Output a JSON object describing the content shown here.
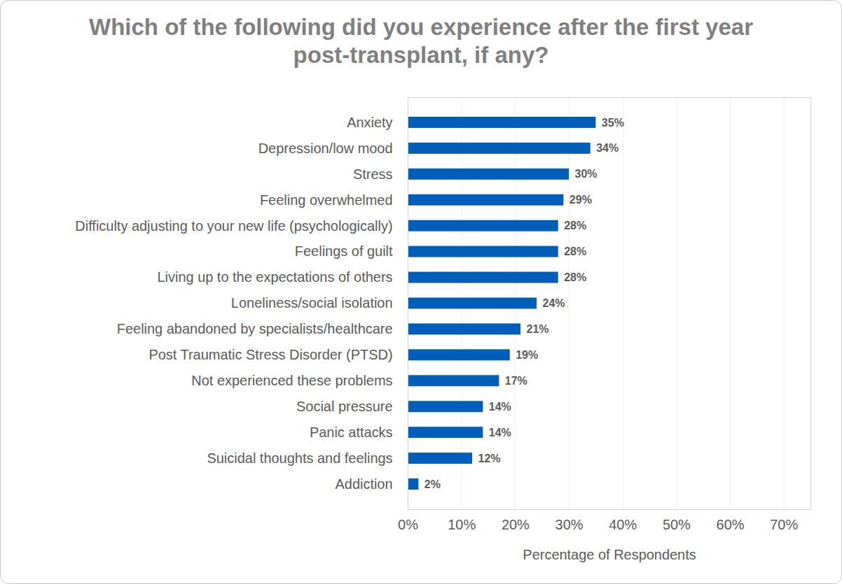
{
  "chart_data": {
    "type": "bar",
    "orientation": "horizontal",
    "title": "Which of the following did you experience after the first year post-transplant, if any?",
    "x_label": "Percentage of Respondents",
    "categories": [
      "Anxiety",
      "Depression/low mood",
      "Stress",
      "Feeling overwhelmed",
      "Difficulty adjusting to your new life (psychologically)",
      "Feelings of guilt",
      "Living up to the expectations of others",
      "Loneliness/social isolation",
      "Feeling abandoned by specialists/healthcare",
      "Post Traumatic Stress Disorder (PTSD)",
      "Not experienced these problems",
      "Social pressure",
      "Panic attacks",
      "Suicidal thoughts and feelings",
      "Addiction"
    ],
    "values": [
      35,
      34,
      30,
      29,
      28,
      28,
      28,
      24,
      21,
      19,
      17,
      14,
      14,
      12,
      2
    ],
    "value_labels": [
      "35%",
      "34%",
      "30%",
      "29%",
      "28%",
      "28%",
      "28%",
      "24%",
      "21%",
      "19%",
      "17%",
      "14%",
      "14%",
      "12%",
      "2%"
    ],
    "data_labels": true,
    "color": "#005eb8",
    "xlim": [
      0,
      75
    ],
    "xticks": [
      {
        "value": 0,
        "label": "0%"
      },
      {
        "value": 10,
        "label": "10%"
      },
      {
        "value": 20,
        "label": "20%"
      },
      {
        "value": 30,
        "label": "30%"
      },
      {
        "value": 40,
        "label": "40%"
      },
      {
        "value": 50,
        "label": "50%"
      },
      {
        "value": 60,
        "label": "60%"
      },
      {
        "value": 70,
        "label": "70%"
      }
    ],
    "grid": true
  }
}
